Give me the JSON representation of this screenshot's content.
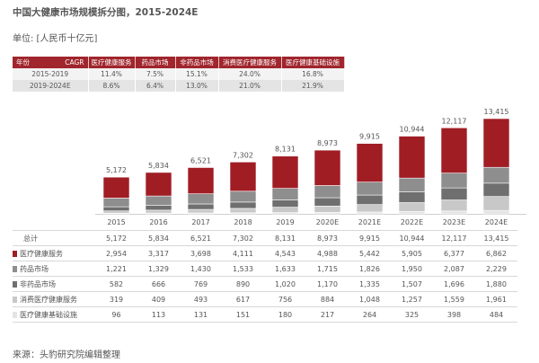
{
  "title": "中国大健康市场规模拆分图，2015-2024E",
  "unit": "单位: [人民币十亿元]",
  "source": "来源：头豹研究院编辑整理",
  "cagr_table": {
    "corner_left": "年份",
    "corner_right": "CAGR",
    "headers": [
      "医疗健康服务",
      "药品市场",
      "非药品市场",
      "消费医疗健康服务",
      "医疗健康基础设施"
    ],
    "rows": [
      {
        "period": "2015-2019",
        "values": [
          "11.4%",
          "7.5%",
          "15.1%",
          "24.0%",
          "16.8%"
        ]
      },
      {
        "period": "2019-2024E",
        "values": [
          "8.6%",
          "6.4%",
          "13.0%",
          "21.0%",
          "21.9%"
        ]
      }
    ]
  },
  "colors": {
    "医疗健康服务": "#a01d24",
    "药品市场": "#8e8e8e",
    "非药品市场": "#6f6f6f",
    "消费医疗健康服务": "#c8c8c8",
    "医疗健康基础设施": "#e4e4e4"
  },
  "chart_data": {
    "type": "bar",
    "stacked": true,
    "categories": [
      "2015",
      "2016",
      "2017",
      "2018",
      "2019",
      "2020E",
      "2021E",
      "2022E",
      "2023E",
      "2024E"
    ],
    "totals_label": "总计",
    "totals": [
      5172,
      5834,
      6521,
      7302,
      8131,
      8973,
      9915,
      10944,
      12117,
      13415
    ],
    "total_labels": [
      "5,172",
      "5,834",
      "6,521",
      "7,302",
      "8,131",
      "8,973",
      "9,915",
      "10,944",
      "12,117",
      "13,415"
    ],
    "series": [
      {
        "name": "医疗健康服务",
        "values": [
          2954,
          3317,
          3698,
          4111,
          4543,
          4988,
          5442,
          5905,
          6377,
          6862
        ],
        "labels": [
          "2,954",
          "3,317",
          "3,698",
          "4,111",
          "4,543",
          "4,988",
          "5,442",
          "5,905",
          "6,377",
          "6,862"
        ]
      },
      {
        "name": "药品市场",
        "values": [
          1221,
          1329,
          1430,
          1533,
          1633,
          1715,
          1826,
          1950,
          2087,
          2229
        ],
        "labels": [
          "1,221",
          "1,329",
          "1,430",
          "1,533",
          "1,633",
          "1,715",
          "1,826",
          "1,950",
          "2,087",
          "2,229"
        ]
      },
      {
        "name": "非药品市场",
        "values": [
          582,
          666,
          769,
          890,
          1020,
          1170,
          1335,
          1507,
          1696,
          1880
        ],
        "labels": [
          "582",
          "666",
          "769",
          "890",
          "1,020",
          "1,170",
          "1,335",
          "1,507",
          "1,696",
          "1,880"
        ]
      },
      {
        "name": "消费医疗健康服务",
        "values": [
          319,
          409,
          493,
          617,
          756,
          884,
          1048,
          1257,
          1559,
          1961
        ],
        "labels": [
          "319",
          "409",
          "493",
          "617",
          "756",
          "884",
          "1,048",
          "1,257",
          "1,559",
          "1,961"
        ]
      },
      {
        "name": "医疗健康基础设施",
        "values": [
          96,
          113,
          131,
          151,
          180,
          217,
          264,
          325,
          398,
          484
        ],
        "labels": [
          "96",
          "113",
          "131",
          "151",
          "180",
          "217",
          "264",
          "325",
          "398",
          "484"
        ]
      }
    ],
    "ylim": [
      0,
      14000
    ]
  }
}
